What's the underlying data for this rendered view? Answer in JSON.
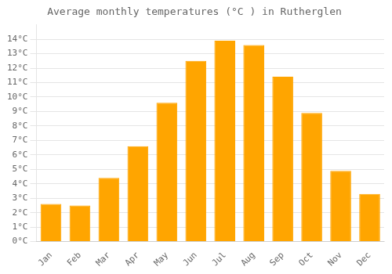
{
  "chart_data": {
    "type": "bar",
    "title": "Average monthly temperatures (°C ) in Rutherglen",
    "categories": [
      "Jan",
      "Feb",
      "Mar",
      "Apr",
      "May",
      "Jun",
      "Jul",
      "Aug",
      "Sep",
      "Oct",
      "Nov",
      "Dec"
    ],
    "values": [
      2.6,
      2.5,
      4.4,
      6.6,
      9.6,
      12.5,
      13.9,
      13.6,
      11.4,
      8.9,
      4.9,
      3.3
    ],
    "color": "#FFA500",
    "ylim": [
      0,
      15
    ],
    "yticks": [
      {
        "value": 0,
        "label": "0°C"
      },
      {
        "value": 1,
        "label": "1°C"
      },
      {
        "value": 2,
        "label": "2°C"
      },
      {
        "value": 3,
        "label": "3°C"
      },
      {
        "value": 4,
        "label": "4°C"
      },
      {
        "value": 5,
        "label": "5°C"
      },
      {
        "value": 6,
        "label": "6°C"
      },
      {
        "value": 7,
        "label": "7°C"
      },
      {
        "value": 8,
        "label": "8°C"
      },
      {
        "value": 9,
        "label": "9°C"
      },
      {
        "value": 10,
        "label": "10°C"
      },
      {
        "value": 11,
        "label": "11°C"
      },
      {
        "value": 12,
        "label": "12°C"
      },
      {
        "value": 13,
        "label": "13°C"
      },
      {
        "value": 14,
        "label": "14°C"
      }
    ],
    "grid": true
  }
}
